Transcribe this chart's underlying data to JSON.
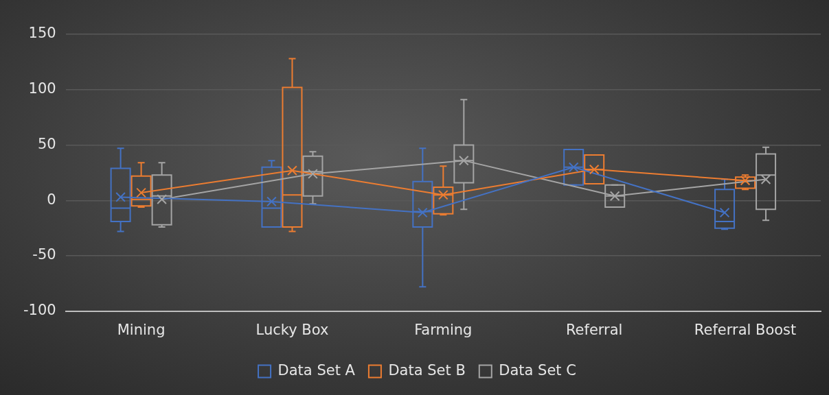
{
  "chart_data": {
    "type": "box",
    "categories": [
      "Mining",
      "Lucky Box",
      "Farming",
      "Referral",
      "Referral Boost"
    ],
    "ylim": [
      -100,
      150
    ],
    "yticks": [
      -100,
      -50,
      0,
      50,
      100,
      150
    ],
    "grid": "y",
    "legend": "bottom",
    "marker": "cross",
    "series": [
      {
        "name": "Data Set A",
        "color": "#4472c4",
        "boxes": [
          {
            "low": -28,
            "q1": -19,
            "median": -7,
            "q3": 29,
            "high": 47,
            "mean": 3
          },
          {
            "low": -24,
            "q1": -24,
            "median": -7,
            "q3": 30,
            "high": 36,
            "mean": -1
          },
          {
            "low": -78,
            "q1": -24,
            "median": -10,
            "q3": 17,
            "high": 47,
            "mean": -11
          },
          {
            "low": 14,
            "q1": 14,
            "median": 30,
            "q3": 46,
            "high": 46,
            "mean": 30
          },
          {
            "low": -26,
            "q1": -25,
            "median": -19,
            "q3": 10,
            "high": 19,
            "mean": -11
          }
        ]
      },
      {
        "name": "Data Set B",
        "color": "#ed7d31",
        "boxes": [
          {
            "low": -6,
            "q1": -5,
            "median": 1,
            "q3": 22,
            "high": 34,
            "mean": 7
          },
          {
            "low": -28,
            "q1": -24,
            "median": 5,
            "q3": 102,
            "high": 128,
            "mean": 27
          },
          {
            "low": -13,
            "q1": -12,
            "median": 5,
            "q3": 12,
            "high": 31,
            "mean": 5
          },
          {
            "low": 15,
            "q1": 15,
            "median": 28,
            "q3": 41,
            "high": 41,
            "mean": 28
          },
          {
            "low": 10,
            "q1": 11,
            "median": 18,
            "q3": 21,
            "high": 23,
            "mean": 18
          }
        ]
      },
      {
        "name": "Data Set C",
        "color": "#a5a5a5",
        "boxes": [
          {
            "low": -24,
            "q1": -22,
            "median": 4,
            "q3": 23,
            "high": 34,
            "mean": 1
          },
          {
            "low": -3,
            "q1": 4,
            "median": 26,
            "q3": 40,
            "high": 44,
            "mean": 24
          },
          {
            "low": -8,
            "q1": 16,
            "median": 36,
            "q3": 50,
            "high": 91,
            "mean": 36
          },
          {
            "low": -6,
            "q1": -6,
            "median": 4,
            "q3": 14,
            "high": 14,
            "mean": 4
          },
          {
            "low": -18,
            "q1": -8,
            "median": 23,
            "q3": 42,
            "high": 48,
            "mean": 19
          }
        ]
      },
      {
        "type": "line",
        "marker": "none",
        "color": "#4472c4",
        "values": [
          3,
          -1,
          -11,
          30,
          -11
        ]
      },
      {
        "type": "line",
        "marker": "none",
        "color": "#ed7d31",
        "values": [
          7,
          27,
          5,
          28,
          18
        ]
      },
      {
        "type": "line",
        "marker": "none",
        "color": "#a5a5a5",
        "values": [
          1,
          24,
          36,
          4,
          19
        ]
      }
    ]
  }
}
